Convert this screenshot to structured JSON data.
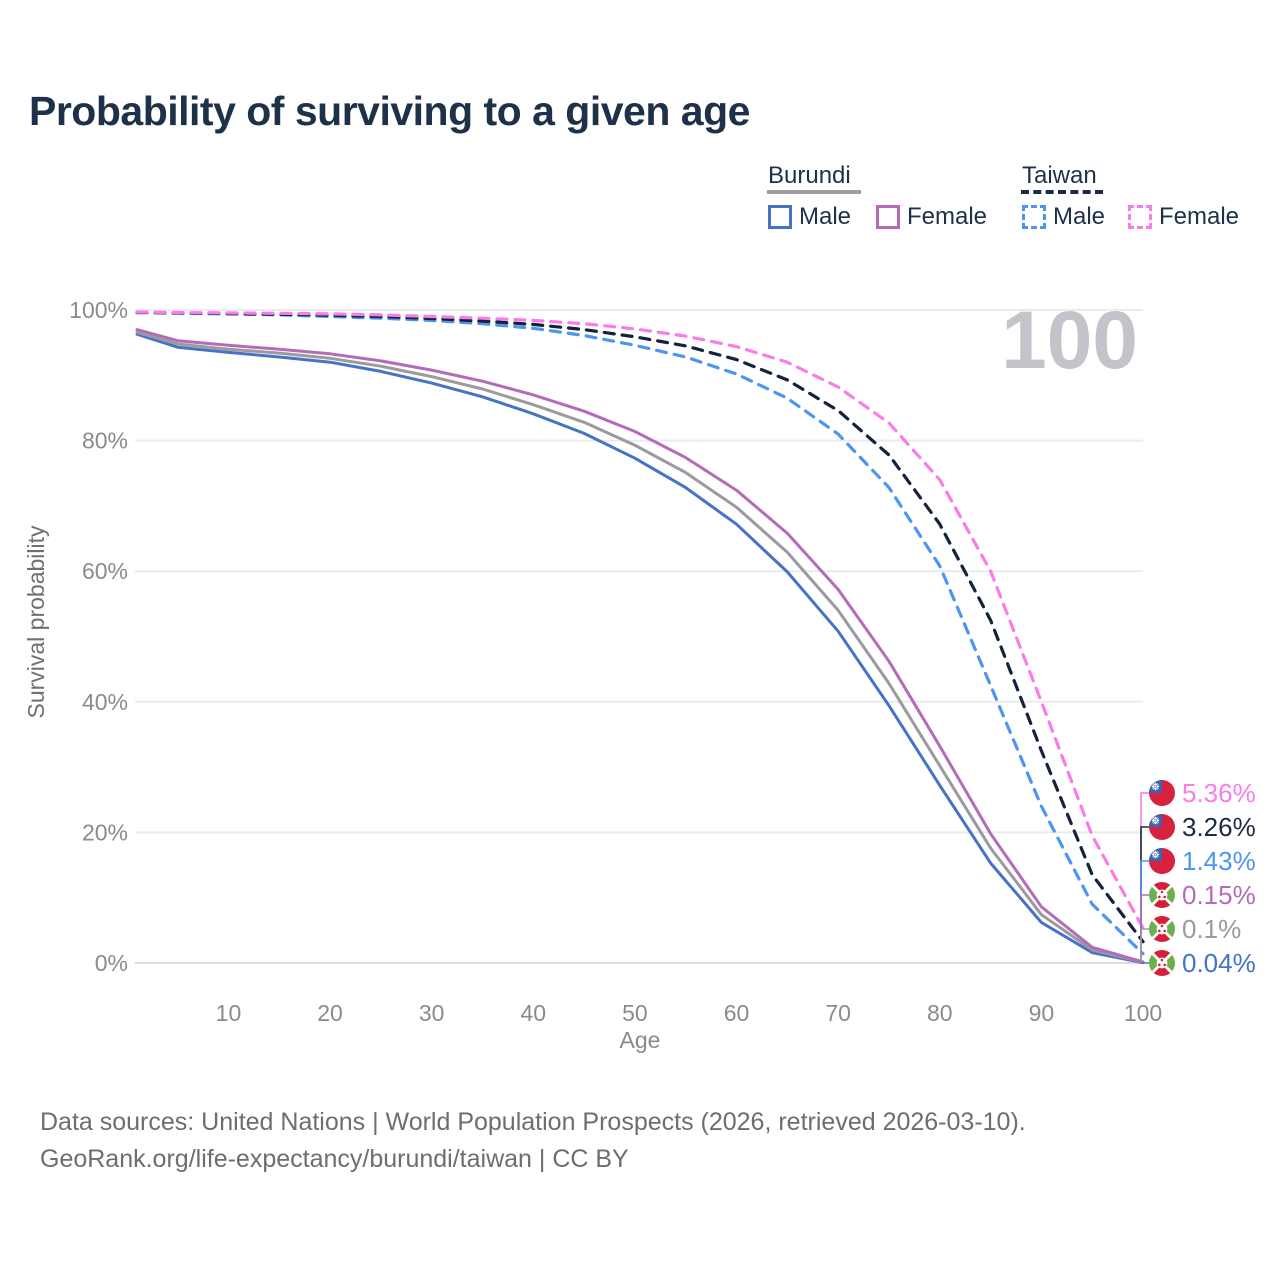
{
  "title": "Probability of surviving to a given age",
  "legend": {
    "groups": [
      {
        "name": "Burundi",
        "line_style": "solid",
        "items": [
          {
            "label": "Male",
            "color": "#4673c5"
          },
          {
            "label": "Female",
            "color": "#b46cb9"
          }
        ]
      },
      {
        "name": "Taiwan",
        "line_style": "dashed",
        "items": [
          {
            "label": "Male",
            "color": "#4e95f2"
          },
          {
            "label": "Female",
            "color": "#f97ce8"
          }
        ]
      }
    ]
  },
  "chart_data": {
    "type": "line",
    "title": "Probability of surviving to a given age",
    "xlabel": "Age",
    "ylabel": "Survival probability",
    "x_domain": [
      1,
      100
    ],
    "y_domain": [
      0,
      100
    ],
    "x_ticks": [
      10,
      20,
      30,
      40,
      50,
      60,
      70,
      80,
      90,
      100
    ],
    "y_ticks": [
      {
        "value": 0,
        "label": "0%"
      },
      {
        "value": 20,
        "label": "20%"
      },
      {
        "value": 40,
        "label": "40%"
      },
      {
        "value": 60,
        "label": "60%"
      },
      {
        "value": 80,
        "label": "80%"
      },
      {
        "value": 100,
        "label": "100%"
      }
    ],
    "grid": "horizontal",
    "legend_position": "top-right",
    "annotation": "100",
    "series": [
      {
        "name": "Burundi Male",
        "color": "#4673c5",
        "dashed": false,
        "points": [
          [
            1,
            96.3
          ],
          [
            5,
            94.3
          ],
          [
            10,
            93.5
          ],
          [
            15,
            92.8
          ],
          [
            20,
            92.0
          ],
          [
            25,
            90.6
          ],
          [
            30,
            88.8
          ],
          [
            35,
            86.7
          ],
          [
            40,
            84.1
          ],
          [
            45,
            81.1
          ],
          [
            50,
            77.3
          ],
          [
            55,
            72.8
          ],
          [
            60,
            67.2
          ],
          [
            65,
            59.9
          ],
          [
            70,
            50.8
          ],
          [
            75,
            39.4
          ],
          [
            80,
            27.2
          ],
          [
            85,
            15.3
          ],
          [
            90,
            6.2
          ],
          [
            95,
            1.6
          ],
          [
            100,
            0.04
          ]
        ]
      },
      {
        "name": "Burundi Combined",
        "color": "#9a9a9f",
        "dashed": false,
        "points": [
          [
            1,
            96.6
          ],
          [
            5,
            94.8
          ],
          [
            10,
            94.0
          ],
          [
            15,
            93.4
          ],
          [
            20,
            92.6
          ],
          [
            25,
            91.4
          ],
          [
            30,
            89.8
          ],
          [
            35,
            87.9
          ],
          [
            40,
            85.5
          ],
          [
            45,
            82.8
          ],
          [
            50,
            79.3
          ],
          [
            55,
            75.1
          ],
          [
            60,
            69.8
          ],
          [
            65,
            62.9
          ],
          [
            70,
            54.0
          ],
          [
            75,
            42.8
          ],
          [
            80,
            30.2
          ],
          [
            85,
            17.6
          ],
          [
            90,
            7.4
          ],
          [
            95,
            2.0
          ],
          [
            100,
            0.1
          ]
        ]
      },
      {
        "name": "Burundi Female",
        "color": "#b46cb9",
        "dashed": false,
        "points": [
          [
            1,
            97.0
          ],
          [
            5,
            95.3
          ],
          [
            10,
            94.6
          ],
          [
            15,
            94.0
          ],
          [
            20,
            93.3
          ],
          [
            25,
            92.2
          ],
          [
            30,
            90.8
          ],
          [
            35,
            89.1
          ],
          [
            40,
            87.0
          ],
          [
            45,
            84.5
          ],
          [
            50,
            81.4
          ],
          [
            55,
            77.4
          ],
          [
            60,
            72.4
          ],
          [
            65,
            65.8
          ],
          [
            70,
            57.2
          ],
          [
            75,
            46.2
          ],
          [
            80,
            33.2
          ],
          [
            85,
            19.8
          ],
          [
            90,
            8.6
          ],
          [
            95,
            2.4
          ],
          [
            100,
            0.15
          ]
        ]
      },
      {
        "name": "Taiwan Male",
        "color": "#4e95f2",
        "dashed": true,
        "points": [
          [
            1,
            99.6
          ],
          [
            5,
            99.5
          ],
          [
            10,
            99.4
          ],
          [
            15,
            99.25
          ],
          [
            20,
            99.0
          ],
          [
            25,
            98.75
          ],
          [
            30,
            98.4
          ],
          [
            35,
            97.9
          ],
          [
            40,
            97.2
          ],
          [
            45,
            96.1
          ],
          [
            50,
            94.6
          ],
          [
            55,
            92.8
          ],
          [
            60,
            90.2
          ],
          [
            65,
            86.5
          ],
          [
            70,
            81.0
          ],
          [
            75,
            72.8
          ],
          [
            80,
            60.8
          ],
          [
            85,
            42.5
          ],
          [
            90,
            24.0
          ],
          [
            95,
            9.0
          ],
          [
            100,
            1.43
          ]
        ]
      },
      {
        "name": "Taiwan Combined",
        "color": "#16223c",
        "dashed": true,
        "points": [
          [
            1,
            99.65
          ],
          [
            5,
            99.55
          ],
          [
            10,
            99.45
          ],
          [
            15,
            99.35
          ],
          [
            20,
            99.2
          ],
          [
            25,
            99.0
          ],
          [
            30,
            98.7
          ],
          [
            35,
            98.3
          ],
          [
            40,
            97.8
          ],
          [
            45,
            97.0
          ],
          [
            50,
            95.9
          ],
          [
            55,
            94.5
          ],
          [
            60,
            92.4
          ],
          [
            65,
            89.3
          ],
          [
            70,
            84.6
          ],
          [
            75,
            77.8
          ],
          [
            80,
            67.2
          ],
          [
            85,
            52.5
          ],
          [
            90,
            32.5
          ],
          [
            95,
            13.5
          ],
          [
            100,
            3.26
          ]
        ]
      },
      {
        "name": "Taiwan Female",
        "color": "#f97ce8",
        "dashed": true,
        "points": [
          [
            1,
            99.7
          ],
          [
            5,
            99.6
          ],
          [
            10,
            99.55
          ],
          [
            15,
            99.5
          ],
          [
            20,
            99.4
          ],
          [
            25,
            99.25
          ],
          [
            30,
            99.0
          ],
          [
            35,
            98.75
          ],
          [
            40,
            98.4
          ],
          [
            45,
            97.9
          ],
          [
            50,
            97.1
          ],
          [
            55,
            96.0
          ],
          [
            60,
            94.4
          ],
          [
            65,
            92.0
          ],
          [
            70,
            88.2
          ],
          [
            75,
            82.7
          ],
          [
            80,
            74.0
          ],
          [
            85,
            60.0
          ],
          [
            90,
            40.0
          ],
          [
            95,
            19.5
          ],
          [
            100,
            5.36
          ]
        ]
      }
    ],
    "end_labels": [
      {
        "text": "5.36%",
        "color": "#f97ce8",
        "flag": "taiwan",
        "series_index": 5
      },
      {
        "text": "3.26%",
        "color": "#1d2b42",
        "flag": "taiwan",
        "series_index": 4
      },
      {
        "text": "1.43%",
        "color": "#4e95f2",
        "flag": "taiwan",
        "series_index": 3
      },
      {
        "text": "0.15%",
        "color": "#b46cb9",
        "flag": "burundi",
        "series_index": 2
      },
      {
        "text": "0.1%",
        "color": "#9a9a9f",
        "flag": "burundi",
        "series_index": 1
      },
      {
        "text": "0.04%",
        "color": "#4673c5",
        "flag": "burundi",
        "series_index": 0
      }
    ]
  },
  "footer": {
    "line1": "Data sources: United Nations | World Population Prospects (2026, retrieved 2026-03-10).",
    "line2": "GeoRank.org/life-expectancy/burundi/taiwan | CC BY"
  }
}
